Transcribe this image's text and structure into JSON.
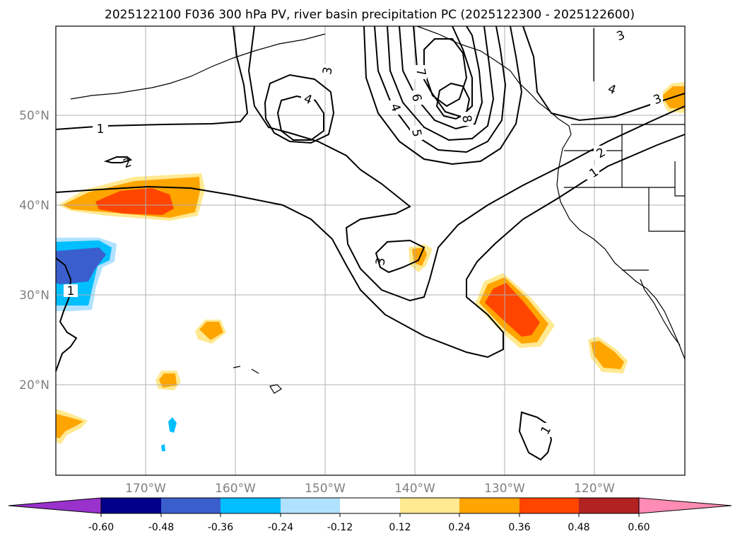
{
  "figure": {
    "title": "2025122100 F036 300 hPa PV, river basin precipitation PC (2025122300 - 2025122600)"
  },
  "axes": {
    "lat_labels": [
      "50°N",
      "40°N",
      "30°N",
      "20°N"
    ],
    "lon_labels": [
      "170°W",
      "160°W",
      "150°W",
      "140°W",
      "130°W",
      "120°W"
    ]
  },
  "colorbar": {
    "ticks": [
      "-0.60",
      "-0.48",
      "-0.36",
      "-0.24",
      "-0.12",
      "0.12",
      "0.24",
      "0.36",
      "0.48",
      "0.60"
    ],
    "colors": [
      "#9932cc",
      "#00008b",
      "#3a5fcd",
      "#00bfff",
      "#b0e2ff",
      "#ffffff",
      "#ffe991",
      "#ffa500",
      "#ff4500",
      "#b22222",
      "#ff8cb4"
    ]
  },
  "pv_contour_labels": [
    "1",
    "1",
    "2",
    "3",
    "4",
    "3",
    "4",
    "5",
    "6",
    "7",
    "8",
    "3",
    "4",
    "2",
    "1",
    "3",
    "1"
  ]
}
